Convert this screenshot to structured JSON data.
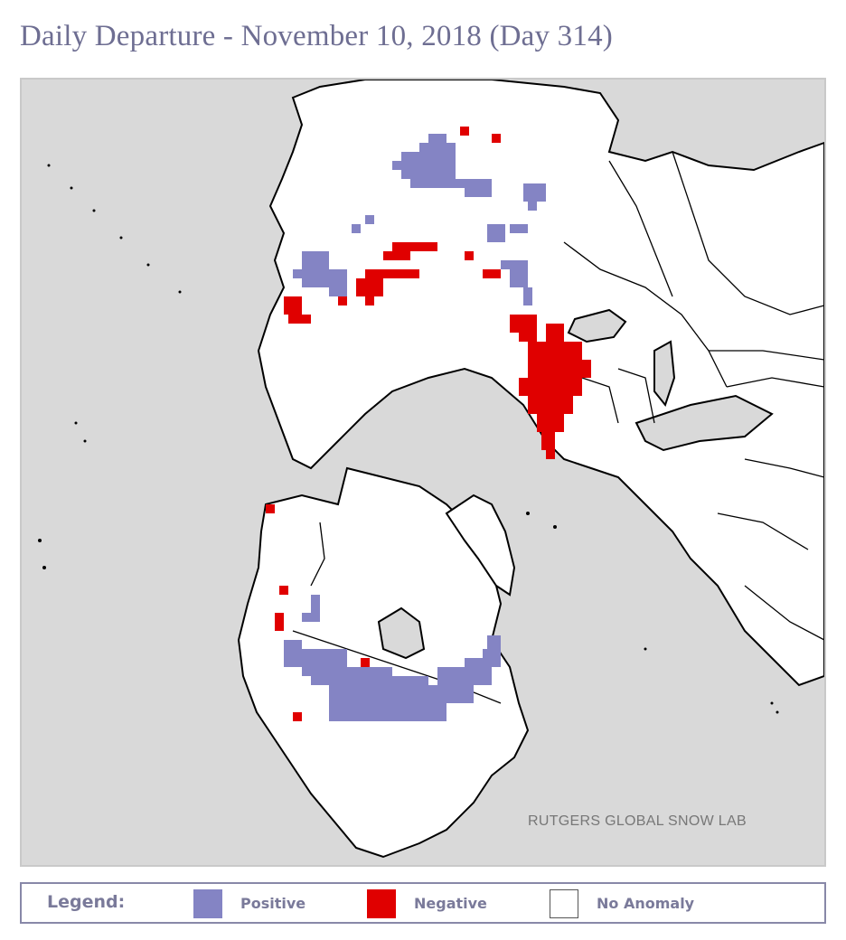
{
  "title": "Daily Departure - November 10, 2018 (Day 314)",
  "credit": "RUTGERS GLOBAL SNOW LAB",
  "colors": {
    "positive": "#8484c4",
    "negative": "#e00000",
    "no_anomaly": "#ffffff",
    "water": "#d9d9d9",
    "border": "#000000"
  },
  "legend": {
    "title": "Legend:",
    "items": [
      {
        "label": "Positive",
        "color": "#8484c4"
      },
      {
        "label": "Negative",
        "color": "#e00000"
      },
      {
        "label": "No Anomaly",
        "color": "#ffffff"
      }
    ]
  }
}
